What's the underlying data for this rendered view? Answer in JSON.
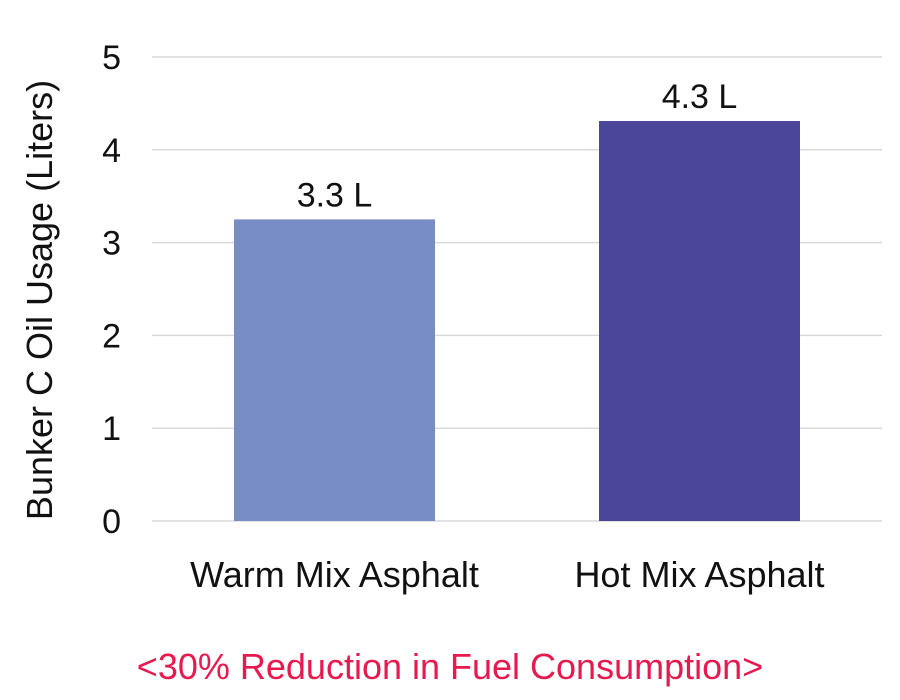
{
  "chart_data": {
    "type": "bar",
    "categories": [
      "Warm Mix Asphalt",
      "Hot Mix Asphalt"
    ],
    "values": [
      3.25,
      4.31
    ],
    "data_labels": [
      "3.3 L",
      "4.3 L"
    ],
    "colors": [
      "#788dc6",
      "#4b4699"
    ],
    "ylabel": "Bunker C Oil Usage (Liters)",
    "xlabel": "",
    "ylim": [
      0,
      5
    ],
    "yticks": [
      "0",
      "1",
      "2",
      "3",
      "4",
      "5"
    ],
    "grid": true,
    "legend": "none"
  },
  "caption": "<30% Reduction in Fuel Consumption>"
}
